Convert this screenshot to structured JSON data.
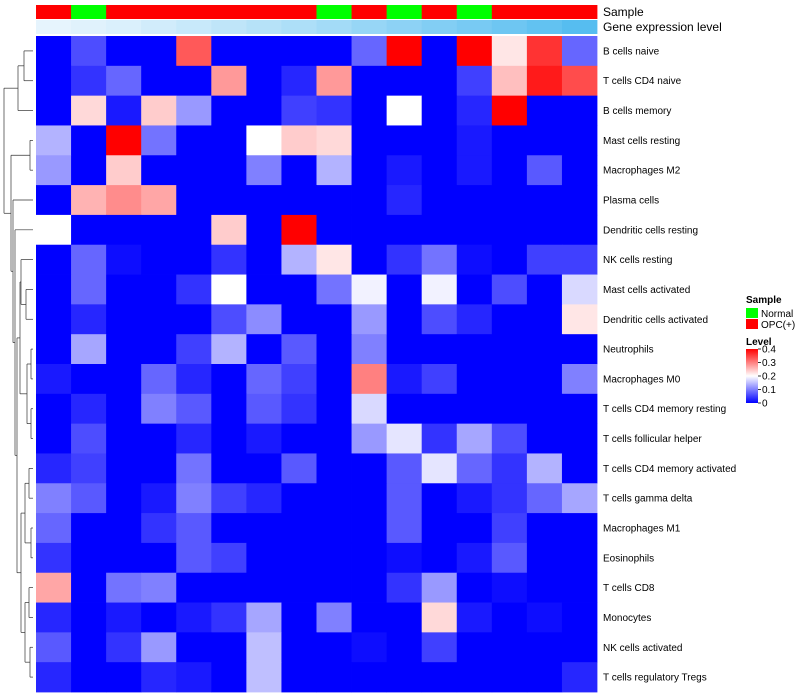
{
  "chart_data": {
    "type": "heatmap",
    "annotation": {
      "sample_label": "Sample",
      "gene_label": "Gene expression level",
      "sample_groups": [
        "OPC(+)",
        "Normal",
        "OPC(+)",
        "OPC(+)",
        "OPC(+)",
        "OPC(+)",
        "OPC(+)",
        "OPC(+)",
        "Normal",
        "OPC(+)",
        "Normal",
        "OPC(+)",
        "Normal",
        "OPC(+)",
        "OPC(+)",
        "OPC(+)"
      ],
      "gene_expression": [
        0.03,
        0.07,
        0.11,
        0.17,
        0.23,
        0.29,
        0.35,
        0.41,
        0.48,
        0.56,
        0.63,
        0.7,
        0.77,
        0.84,
        0.92,
        1.0
      ]
    },
    "sample_colors": {
      "Normal": "#00ff00",
      "OPC(+)": "#ff0000"
    },
    "gene_colors": {
      "low": "#eaf6fd",
      "high": "#56bdf0"
    },
    "rows": [
      "B cells naive",
      "T cells CD4 naive",
      "B cells memory",
      "Mast cells resting",
      "Macrophages M2",
      "Plasma cells",
      "Dendritic cells resting",
      "NK cells resting",
      "Mast cells activated",
      "Dendritic cells activated",
      "Neutrophils",
      "Macrophages M0",
      "T cells CD4 memory resting",
      "T cells follicular helper",
      "T cells CD4 memory activated",
      "T cells gamma delta",
      "Macrophages M1",
      "Eosinophils",
      "T cells CD8",
      "Monocytes",
      "NK cells activated",
      "T cells regulatory  Tregs"
    ],
    "values": [
      [
        0.0,
        0.06,
        0.0,
        0.0,
        0.33,
        0.0,
        0.0,
        0.0,
        0.0,
        0.08,
        0.4,
        0.0,
        0.4,
        0.22,
        0.36,
        0.08
      ],
      [
        0.0,
        0.04,
        0.08,
        0.0,
        0.0,
        0.28,
        0.0,
        0.03,
        0.28,
        0.0,
        0.0,
        0.0,
        0.05,
        0.25,
        0.38,
        0.34
      ],
      [
        0.0,
        0.23,
        0.02,
        0.24,
        0.12,
        0.0,
        0.0,
        0.05,
        0.04,
        0.0,
        0.2,
        0.0,
        0.03,
        0.4,
        0.0,
        0.0
      ],
      [
        0.14,
        0.0,
        0.4,
        0.09,
        0.0,
        0.0,
        0.2,
        0.24,
        0.23,
        0.0,
        0.0,
        0.0,
        0.02,
        0.0,
        0.0,
        0.0
      ],
      [
        0.12,
        0.0,
        0.24,
        0.0,
        0.0,
        0.0,
        0.1,
        0.0,
        0.14,
        0.0,
        0.02,
        0.0,
        0.02,
        0.0,
        0.07,
        0.0
      ],
      [
        0.0,
        0.26,
        0.29,
        0.27,
        0.0,
        0.0,
        0.0,
        0.0,
        0.0,
        0.0,
        0.03,
        0.0,
        0.0,
        0.0,
        0.0,
        0.0
      ],
      [
        0.2,
        0.0,
        0.0,
        0.0,
        0.0,
        0.24,
        0.0,
        0.4,
        0.0,
        0.0,
        0.0,
        0.0,
        0.0,
        0.0,
        0.0,
        0.0
      ],
      [
        0.0,
        0.08,
        0.01,
        0.0,
        0.0,
        0.04,
        0.0,
        0.14,
        0.22,
        0.0,
        0.04,
        0.09,
        0.01,
        0.0,
        0.05,
        0.05
      ],
      [
        0.0,
        0.08,
        0.0,
        0.0,
        0.04,
        0.2,
        0.0,
        0.0,
        0.09,
        0.19,
        0.0,
        0.19,
        0.0,
        0.06,
        0.0,
        0.17
      ],
      [
        0.0,
        0.03,
        0.0,
        0.0,
        0.0,
        0.06,
        0.11,
        0.0,
        0.0,
        0.12,
        0.0,
        0.06,
        0.03,
        0.0,
        0.0,
        0.22
      ],
      [
        0.0,
        0.13,
        0.0,
        0.0,
        0.05,
        0.14,
        0.0,
        0.07,
        0.0,
        0.1,
        0.0,
        0.0,
        0.0,
        0.0,
        0.0,
        0.0
      ],
      [
        0.02,
        0.0,
        0.0,
        0.08,
        0.03,
        0.0,
        0.08,
        0.05,
        0.0,
        0.3,
        0.02,
        0.05,
        0.0,
        0.0,
        0.0,
        0.1
      ],
      [
        0.0,
        0.03,
        0.0,
        0.1,
        0.07,
        0.0,
        0.07,
        0.04,
        0.0,
        0.17,
        0.0,
        0.0,
        0.0,
        0.0,
        0.0,
        0.0
      ],
      [
        0.0,
        0.06,
        0.0,
        0.0,
        0.03,
        0.0,
        0.02,
        0.0,
        0.0,
        0.12,
        0.18,
        0.04,
        0.13,
        0.06,
        0.0,
        0.0
      ],
      [
        0.03,
        0.05,
        0.0,
        0.0,
        0.09,
        0.0,
        0.0,
        0.07,
        0.0,
        0.0,
        0.07,
        0.18,
        0.08,
        0.04,
        0.14,
        0.0
      ],
      [
        0.1,
        0.07,
        0.0,
        0.02,
        0.1,
        0.05,
        0.03,
        0.0,
        0.0,
        0.0,
        0.07,
        0.0,
        0.02,
        0.04,
        0.08,
        0.13
      ],
      [
        0.08,
        0.0,
        0.0,
        0.04,
        0.07,
        0.0,
        0.0,
        0.0,
        0.0,
        0.0,
        0.07,
        0.0,
        0.0,
        0.05,
        0.0,
        0.0
      ],
      [
        0.04,
        0.0,
        0.0,
        0.0,
        0.07,
        0.05,
        0.0,
        0.0,
        0.0,
        0.0,
        0.01,
        0.0,
        0.02,
        0.07,
        0.0,
        0.0
      ],
      [
        0.27,
        0.0,
        0.09,
        0.1,
        0.0,
        0.0,
        0.0,
        0.0,
        0.0,
        0.0,
        0.04,
        0.12,
        0.0,
        0.01,
        0.0,
        0.0
      ],
      [
        0.03,
        0.0,
        0.02,
        0.0,
        0.02,
        0.04,
        0.13,
        0.0,
        0.1,
        0.0,
        0.0,
        0.23,
        0.02,
        0.0,
        0.01,
        0.0
      ],
      [
        0.07,
        0.0,
        0.04,
        0.12,
        0.0,
        0.0,
        0.15,
        0.0,
        0.0,
        0.01,
        0.0,
        0.05,
        0.0,
        0.0,
        0.0,
        0.0
      ],
      [
        0.03,
        0.0,
        0.0,
        0.03,
        0.02,
        0.0,
        0.15,
        0.0,
        0.0,
        0.0,
        0.0,
        0.0,
        0.0,
        0.0,
        0.0,
        0.03
      ]
    ],
    "color_scale": {
      "min": 0,
      "mid": 0.2,
      "max": 0.4,
      "low_color": "#0000ff",
      "mid_color": "#ffffff",
      "high_color": "#ff0000"
    },
    "legend": {
      "sample_title": "Sample",
      "sample_entries": [
        "Normal",
        "OPC(+)"
      ],
      "level_title": "Level",
      "level_ticks": [
        "0.4",
        "0.3",
        "0.2",
        "0.1",
        "0"
      ]
    },
    "dendrogram": "row"
  }
}
